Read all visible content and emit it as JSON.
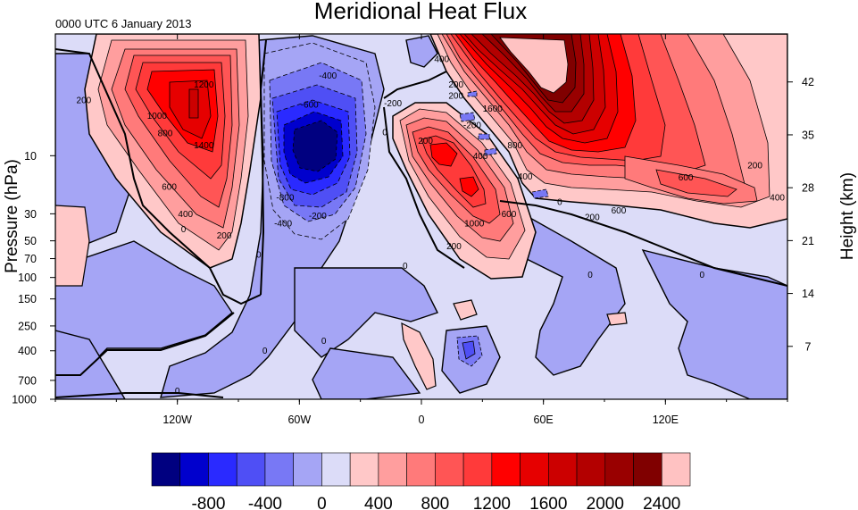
{
  "chart_data": {
    "type": "heatmap",
    "title": "Meridional Heat Flux",
    "subtitle": "0000 UTC 6 January 2013",
    "xlabel": "",
    "ylabel": "Pressure (hPa)",
    "ylabel_right": "Height (km)",
    "x_range": [
      -180,
      180
    ],
    "x_ticks": [
      {
        "value": -120,
        "label": "120W"
      },
      {
        "value": -60,
        "label": "60W"
      },
      {
        "value": 0,
        "label": "0"
      },
      {
        "value": 60,
        "label": "60E"
      },
      {
        "value": 120,
        "label": "120E"
      }
    ],
    "y_scale": "log",
    "y_range": [
      1000,
      1
    ],
    "y_ticks": [
      {
        "value": 10,
        "label": "10"
      },
      {
        "value": 30,
        "label": "30"
      },
      {
        "value": 50,
        "label": "50"
      },
      {
        "value": 70,
        "label": "70"
      },
      {
        "value": 100,
        "label": "100"
      },
      {
        "value": 150,
        "label": "150"
      },
      {
        "value": 250,
        "label": "250"
      },
      {
        "value": 400,
        "label": "400"
      },
      {
        "value": 700,
        "label": "700"
      },
      {
        "value": 1000,
        "label": "1000"
      }
    ],
    "right_ticks": [
      {
        "value": 42,
        "label": "42"
      },
      {
        "value": 35,
        "label": "35"
      },
      {
        "value": 28,
        "label": "28"
      },
      {
        "value": 21,
        "label": "21"
      },
      {
        "value": 14,
        "label": "14"
      },
      {
        "value": 7,
        "label": "7"
      }
    ],
    "colorbar": {
      "colors": [
        "#000080",
        "#0000cd",
        "#2a2aff",
        "#4f4ff5",
        "#7878f5",
        "#a5a5f5",
        "#dcdcf8",
        "#ffc8c8",
        "#ff9e9e",
        "#ff7a7a",
        "#ff5555",
        "#ff3a3a",
        "#ff0000",
        "#e60000",
        "#cc0000",
        "#b30000",
        "#990000",
        "#800000",
        "#ffc2c2"
      ],
      "labels": [
        "-800",
        "-400",
        "0",
        "400",
        "800",
        "1200",
        "1600",
        "2000",
        "2400"
      ],
      "label_values": [
        -800,
        -400,
        0,
        400,
        800,
        1200,
        1600,
        2000,
        2400
      ],
      "range": [
        -1200,
        2600
      ]
    },
    "features": [
      {
        "name": "positive maximum near 110W",
        "lon": -112,
        "pressure": 4,
        "peak": 1400
      },
      {
        "name": "negative minimum near 50W",
        "lon": -48,
        "pressure": 9,
        "peak": -1000
      },
      {
        "name": "positive maximum near 15E",
        "lon": 15,
        "pressure": 12,
        "peak": 1000
      },
      {
        "name": "strong positive maximum near 75E",
        "lon": 75,
        "pressure": 2,
        "peak": 2400
      },
      {
        "name": "positive tongue near 140E",
        "lon": 140,
        "pressure": 20,
        "peak": 600
      }
    ],
    "contour_labels": [
      {
        "text": "200",
        "lon": -166,
        "pressure": 3.5
      },
      {
        "text": "1200",
        "lon": -107,
        "pressure": 2.6
      },
      {
        "text": "1000",
        "lon": -130,
        "pressure": 4.7
      },
      {
        "text": "800",
        "lon": -126,
        "pressure": 6.5
      },
      {
        "text": "1400",
        "lon": -107,
        "pressure": 8.2
      },
      {
        "text": "600",
        "lon": -124,
        "pressure": 18
      },
      {
        "text": "400",
        "lon": -116,
        "pressure": 30
      },
      {
        "text": "200",
        "lon": -97,
        "pressure": 45
      },
      {
        "text": "0",
        "lon": -117,
        "pressure": 40
      },
      {
        "text": "-400",
        "lon": -46,
        "pressure": 2.2
      },
      {
        "text": "-600",
        "lon": -55,
        "pressure": 3.8
      },
      {
        "text": "-200",
        "lon": -14,
        "pressure": 3.7
      },
      {
        "text": "-800",
        "lon": -67,
        "pressure": 22
      },
      {
        "text": "-200",
        "lon": -51,
        "pressure": 31
      },
      {
        "text": "-400",
        "lon": -68,
        "pressure": 36
      },
      {
        "text": "0",
        "lon": -80,
        "pressure": 65
      },
      {
        "text": "0",
        "lon": -18,
        "pressure": 6.4
      },
      {
        "text": "400",
        "lon": 10,
        "pressure": 1.6
      },
      {
        "text": "200",
        "lon": 17,
        "pressure": 3.2
      },
      {
        "text": "200",
        "lon": 2,
        "pressure": 7.5
      },
      {
        "text": "-200",
        "lon": 25,
        "pressure": 5.6
      },
      {
        "text": "400",
        "lon": 29,
        "pressure": 10
      },
      {
        "text": "1000",
        "lon": 26,
        "pressure": 36
      },
      {
        "text": "600",
        "lon": 43,
        "pressure": 30
      },
      {
        "text": "200",
        "lon": 16,
        "pressure": 55
      },
      {
        "text": "0",
        "lon": -8,
        "pressure": 80
      },
      {
        "text": "200",
        "lon": 17,
        "pressure": 2.6
      },
      {
        "text": "1600",
        "lon": 35,
        "pressure": 4.1
      },
      {
        "text": "800",
        "lon": 46,
        "pressure": 8.2
      },
      {
        "text": "400",
        "lon": 51,
        "pressure": 14.8
      },
      {
        "text": "0",
        "lon": 68,
        "pressure": 24
      },
      {
        "text": "200",
        "lon": 84,
        "pressure": 32
      },
      {
        "text": "600",
        "lon": 97,
        "pressure": 28
      },
      {
        "text": "600",
        "lon": 130,
        "pressure": 15
      },
      {
        "text": "200",
        "lon": 164,
        "pressure": 12
      },
      {
        "text": "400",
        "lon": 175,
        "pressure": 22
      },
      {
        "text": "0",
        "lon": 83,
        "pressure": 95
      },
      {
        "text": "0",
        "lon": 138,
        "pressure": 95
      },
      {
        "text": "0",
        "lon": -48,
        "pressure": 330
      },
      {
        "text": "0",
        "lon": -77,
        "pressure": 400
      },
      {
        "text": "0",
        "lon": -120,
        "pressure": 850
      }
    ]
  }
}
